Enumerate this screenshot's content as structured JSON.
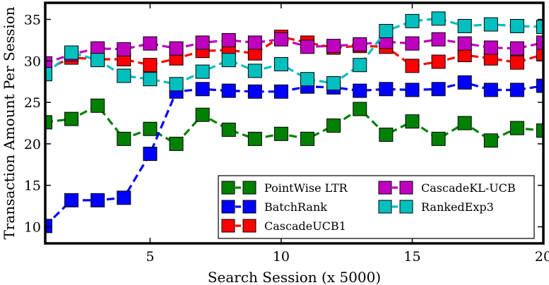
{
  "chart_data": {
    "type": "line",
    "title": "",
    "xlabel": "Search Session (x 5000)",
    "ylabel": "Transaction Amount Per Session",
    "xlim": [
      1,
      20
    ],
    "ylim": [
      8,
      37
    ],
    "xticks": [
      5,
      10,
      15,
      20
    ],
    "yticks": [
      10,
      15,
      20,
      25,
      30,
      35
    ],
    "x": [
      1,
      2,
      3,
      4,
      5,
      6,
      7,
      8,
      9,
      10,
      11,
      12,
      13,
      14,
      15,
      16,
      17,
      18,
      19,
      20
    ],
    "series": [
      {
        "name": "PointWise LTR",
        "color": "#008000",
        "values": [
          22.6,
          23.0,
          24.6,
          20.6,
          21.8,
          20.0,
          23.5,
          21.7,
          20.6,
          21.2,
          20.6,
          22.2,
          24.2,
          21.1,
          22.7,
          20.6,
          22.5,
          20.4,
          21.9,
          21.6
        ]
      },
      {
        "name": "BatchRank",
        "color": "#0000ff",
        "values": [
          10.1,
          13.2,
          13.2,
          13.5,
          18.8,
          26.3,
          26.6,
          26.4,
          26.3,
          26.3,
          26.9,
          26.8,
          26.4,
          26.6,
          26.5,
          26.6,
          27.4,
          26.5,
          26.5,
          27.0
        ]
      },
      {
        "name": "CascadeUCB1",
        "color": "#ff0000",
        "values": [
          28.9,
          30.4,
          30.2,
          30.2,
          29.5,
          30.3,
          31.2,
          31.3,
          30.9,
          32.9,
          32.2,
          31.6,
          31.8,
          31.7,
          29.4,
          29.9,
          30.7,
          30.3,
          29.8,
          30.8
        ]
      },
      {
        "name": "CascadeKL-UCB",
        "color": "#bf00bf",
        "values": [
          29.7,
          30.8,
          31.5,
          31.4,
          32.1,
          31.5,
          32.2,
          32.5,
          32.2,
          32.6,
          31.7,
          31.8,
          32.0,
          32.3,
          32.1,
          32.6,
          32.1,
          31.6,
          31.5,
          32.2
        ]
      },
      {
        "name": "RankedExp3",
        "color": "#00bfbf",
        "values": [
          28.4,
          31.0,
          30.1,
          28.2,
          27.8,
          27.2,
          28.7,
          30.1,
          28.8,
          29.6,
          27.8,
          27.3,
          29.5,
          33.6,
          34.8,
          35.1,
          34.2,
          34.4,
          34.2,
          34.1
        ]
      }
    ],
    "legend": {
      "placement": "lower-right",
      "columns": 2
    }
  }
}
